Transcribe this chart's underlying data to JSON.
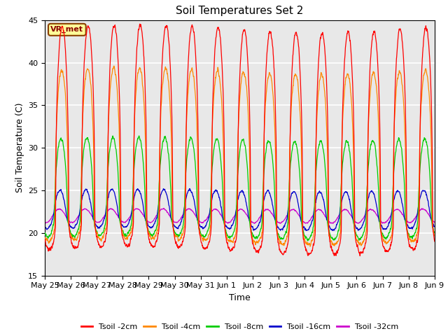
{
  "title": "Soil Temperatures Set 2",
  "xlabel": "Time",
  "ylabel": "Soil Temperature (C)",
  "ylim": [
    15,
    45
  ],
  "yticks": [
    15,
    20,
    25,
    30,
    35,
    40,
    45
  ],
  "bg_color": "#e8e8e8",
  "grid_color": "white",
  "line_colors": {
    "2cm": "#ff0000",
    "4cm": "#ff8800",
    "8cm": "#00cc00",
    "16cm": "#0000cc",
    "32cm": "#cc00cc"
  },
  "legend_labels": [
    "Tsoil -2cm",
    "Tsoil -4cm",
    "Tsoil -8cm",
    "Tsoil -16cm",
    "Tsoil -32cm"
  ],
  "annotation_text": "VR_met",
  "x_tick_labels": [
    "May 25",
    "May 26",
    "May 27",
    "May 28",
    "May 29",
    "May 30",
    "May 31",
    "Jun 1",
    "Jun 2",
    "Jun 3",
    "Jun 4",
    "Jun 5",
    "Jun 6",
    "Jun 7",
    "Jun 8",
    "Jun 9"
  ],
  "n_days": 15,
  "points_per_day": 144
}
